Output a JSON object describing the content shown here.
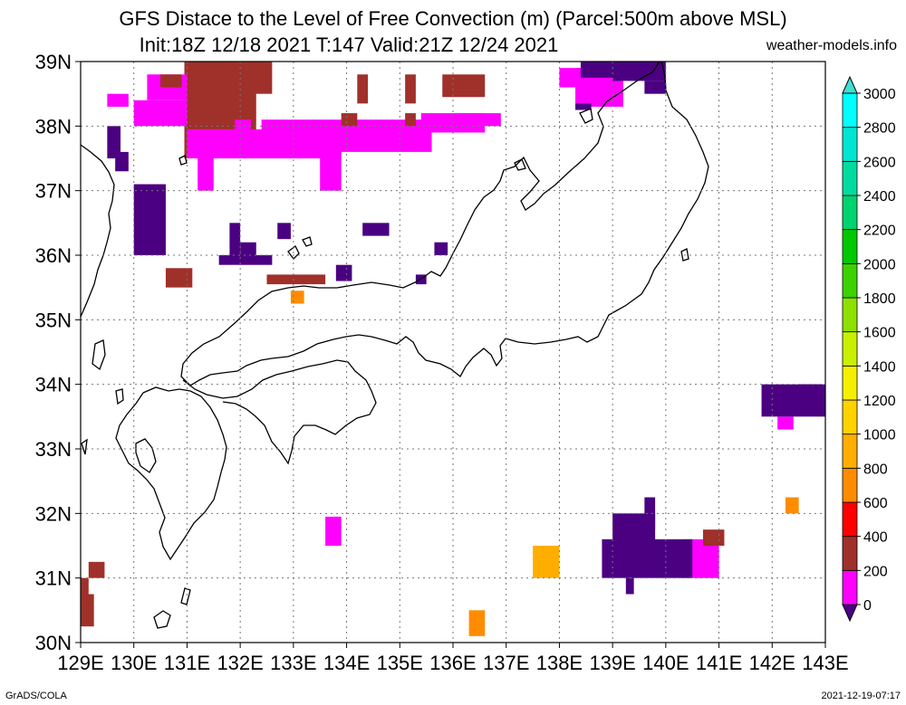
{
  "header": {
    "title_line1": "GFS Distace to the Level of Free Convection (m) (Parcel:500m above MSL)",
    "title_line2": "Init:18Z 12/18 2021 T:147 Valid:21Z 12/24 2021",
    "site": "weather-models.info"
  },
  "footer": {
    "left": "GrADS/COLA",
    "right": "2021-12-19-07:17"
  },
  "chart_data": {
    "type": "heatmap",
    "title": "GFS Distace to the Level of Free Convection (m) (Parcel:500m above MSL)",
    "subtitle": "Init:18Z 12/18 2021 T:147 Valid:21Z 12/24 2021",
    "x_ticks": [
      "129E",
      "130E",
      "131E",
      "132E",
      "133E",
      "134E",
      "135E",
      "136E",
      "137E",
      "138E",
      "139E",
      "140E",
      "141E",
      "142E",
      "143E"
    ],
    "y_ticks": [
      "30N",
      "31N",
      "32N",
      "33N",
      "34N",
      "35N",
      "36N",
      "37N",
      "38N",
      "39N"
    ],
    "xlim": [
      129,
      143
    ],
    "ylim": [
      30,
      39
    ],
    "grid": true,
    "colorbar": {
      "levels": [
        0,
        200,
        400,
        600,
        800,
        1000,
        1200,
        1400,
        1600,
        1800,
        2000,
        2200,
        2400,
        2600,
        2800,
        3000
      ],
      "colors": [
        "#4b0082",
        "#ff00ff",
        "#a0302a",
        "#ff0000",
        "#ff8c00",
        "#ffae00",
        "#ffd200",
        "#f5f000",
        "#c8f000",
        "#8ee000",
        "#3cd200",
        "#00c800",
        "#00d26e",
        "#00dca0",
        "#00e6d2",
        "#00ffff",
        "#40e0d0"
      ]
    },
    "regions": [
      {
        "lon": [
          130.95,
          132.3
        ],
        "lat": [
          37.5,
          39.0
        ],
        "class": "400-600"
      },
      {
        "lon": [
          131.4,
          132.6
        ],
        "lat": [
          38.5,
          39.0
        ],
        "class": "400-600"
      },
      {
        "lon": [
          131.9,
          132.2
        ],
        "lat": [
          37.6,
          38.1
        ],
        "class": "200-400"
      },
      {
        "lon": [
          130.25,
          131.0
        ],
        "lat": [
          38.4,
          38.8
        ],
        "class": "200-400"
      },
      {
        "lon": [
          130.0,
          131.0
        ],
        "lat": [
          38.0,
          38.4
        ],
        "class": "200-400"
      },
      {
        "lon": [
          131.0,
          133.9
        ],
        "lat": [
          37.5,
          37.95
        ],
        "class": "200-400"
      },
      {
        "lon": [
          132.4,
          135.6
        ],
        "lat": [
          37.6,
          38.1
        ],
        "class": "200-400"
      },
      {
        "lon": [
          133.5,
          133.9
        ],
        "lat": [
          37.0,
          37.6
        ],
        "class": "200-400"
      },
      {
        "lon": [
          131.2,
          131.5
        ],
        "lat": [
          37.0,
          37.5
        ],
        "class": "200-400"
      },
      {
        "lon": [
          135.4,
          136.6
        ],
        "lat": [
          37.9,
          38.2
        ],
        "class": "200-400"
      },
      {
        "lon": [
          136.1,
          136.9
        ],
        "lat": [
          38.0,
          38.2
        ],
        "class": "200-400"
      },
      {
        "lon": [
          138.3,
          139.2
        ],
        "lat": [
          38.3,
          38.9
        ],
        "class": "200-400"
      },
      {
        "lon": [
          138.0,
          138.6
        ],
        "lat": [
          38.6,
          38.9
        ],
        "class": "200-400"
      },
      {
        "lon": [
          129.5,
          129.9
        ],
        "lat": [
          38.3,
          38.5
        ],
        "class": "200-400"
      },
      {
        "lon": [
          133.6,
          133.9
        ],
        "lat": [
          31.5,
          31.95
        ],
        "class": "200-400"
      },
      {
        "lon": [
          140.3,
          141.0
        ],
        "lat": [
          31.0,
          31.6
        ],
        "class": "200-400"
      },
      {
        "lon": [
          142.1,
          142.4
        ],
        "lat": [
          33.3,
          33.5
        ],
        "class": "200-400"
      },
      {
        "lon": [
          130.5,
          130.9
        ],
        "lat": [
          38.6,
          38.8
        ],
        "class": "400-600"
      },
      {
        "lon": [
          133.9,
          134.2
        ],
        "lat": [
          38.0,
          38.2
        ],
        "class": "400-600"
      },
      {
        "lon": [
          134.2,
          134.4
        ],
        "lat": [
          38.35,
          38.8
        ],
        "class": "400-600"
      },
      {
        "lon": [
          135.1,
          135.3
        ],
        "lat": [
          38.0,
          38.2
        ],
        "class": "400-600"
      },
      {
        "lon": [
          135.1,
          135.3
        ],
        "lat": [
          38.35,
          38.8
        ],
        "class": "400-600"
      },
      {
        "lon": [
          135.8,
          136.6
        ],
        "lat": [
          38.45,
          38.8
        ],
        "class": "400-600"
      },
      {
        "lon": [
          130.6,
          131.1
        ],
        "lat": [
          35.5,
          35.8
        ],
        "class": "400-600"
      },
      {
        "lon": [
          132.5,
          133.6
        ],
        "lat": [
          35.55,
          35.7
        ],
        "class": "400-600"
      },
      {
        "lon": [
          140.7,
          141.1
        ],
        "lat": [
          31.5,
          31.75
        ],
        "class": "400-600"
      },
      {
        "lon": [
          129.15,
          129.45
        ],
        "lat": [
          31.0,
          31.25
        ],
        "class": "400-600"
      },
      {
        "lon": [
          129.0,
          129.25
        ],
        "lat": [
          30.25,
          30.75
        ],
        "class": "400-600"
      },
      {
        "lon": [
          129.0,
          129.15
        ],
        "lat": [
          30.75,
          31.0
        ],
        "class": "400-600"
      },
      {
        "lon": [
          132.95,
          133.2
        ],
        "lat": [
          35.25,
          35.45
        ],
        "class": "800-1000"
      },
      {
        "lon": [
          142.25,
          142.5
        ],
        "lat": [
          32.0,
          32.25
        ],
        "class": "800-1000"
      },
      {
        "lon": [
          136.3,
          136.6
        ],
        "lat": [
          30.1,
          30.5
        ],
        "class": "800-1000"
      },
      {
        "lon": [
          137.5,
          138.0
        ],
        "lat": [
          31.0,
          31.5
        ],
        "class": "1000-1200"
      },
      {
        "lon": [
          129.5,
          129.75
        ],
        "lat": [
          37.5,
          38.0
        ],
        "class": "0-200"
      },
      {
        "lon": [
          130.0,
          130.6
        ],
        "lat": [
          36.0,
          37.1
        ],
        "class": "0-200"
      },
      {
        "lon": [
          131.6,
          132.6
        ],
        "lat": [
          35.85,
          36.0
        ],
        "class": "0-200"
      },
      {
        "lon": [
          135.3,
          135.5
        ],
        "lat": [
          35.55,
          35.7
        ],
        "class": "0-200"
      },
      {
        "lon": [
          138.4,
          139.2
        ],
        "lat": [
          38.75,
          39.0
        ],
        "class": "0-200"
      },
      {
        "lon": [
          139.6,
          140.0
        ],
        "lat": [
          38.5,
          38.7
        ],
        "class": "0-200"
      },
      {
        "lon": [
          138.8,
          140.5
        ],
        "lat": [
          31.0,
          31.6
        ],
        "class": "0-200"
      },
      {
        "lon": [
          141.8,
          143.0
        ],
        "lat": [
          33.5,
          34.0
        ],
        "class": "0-200"
      },
      {
        "lon": [
          139.0,
          139.8
        ],
        "lat": [
          31.4,
          32.0
        ],
        "class": "0-200"
      },
      {
        "lon": [
          130.2,
          130.5
        ],
        "lat": [
          36.2,
          36.7
        ],
        "class": "0-200"
      },
      {
        "lon": [
          132.0,
          132.3
        ],
        "lat": [
          35.95,
          36.2
        ],
        "class": "0-200"
      },
      {
        "lon": [
          131.8,
          132.0
        ],
        "lat": [
          36.0,
          36.5
        ],
        "class": "0-200"
      },
      {
        "lon": [
          133.8,
          134.1
        ],
        "lat": [
          35.6,
          35.85
        ],
        "class": "0-200"
      },
      {
        "lon": [
          132.7,
          132.95
        ],
        "lat": [
          36.25,
          36.5
        ],
        "class": "0-200"
      },
      {
        "lon": [
          134.3,
          134.8
        ],
        "lat": [
          36.3,
          36.5
        ],
        "class": "0-200"
      },
      {
        "lon": [
          135.65,
          135.9
        ],
        "lat": [
          36.0,
          36.2
        ],
        "class": "0-200"
      },
      {
        "lon": [
          139.0,
          140.0
        ],
        "lat": [
          38.7,
          39.0
        ],
        "class": "0-200"
      },
      {
        "lon": [
          139.25,
          139.4
        ],
        "lat": [
          30.75,
          31.0
        ],
        "class": "0-200"
      },
      {
        "lon": [
          139.6,
          139.8
        ],
        "lat": [
          31.75,
          32.25
        ],
        "class": "0-200"
      },
      {
        "lon": [
          129.65,
          129.9
        ],
        "lat": [
          37.3,
          37.6
        ],
        "class": "0-200"
      },
      {
        "lon": [
          142.5,
          142.9
        ],
        "lat": [
          33.65,
          34.0
        ],
        "class": "0-200"
      },
      {
        "lon": [
          138.3,
          138.6
        ],
        "lat": [
          38.25,
          38.35
        ],
        "class": "0-200"
      }
    ]
  }
}
